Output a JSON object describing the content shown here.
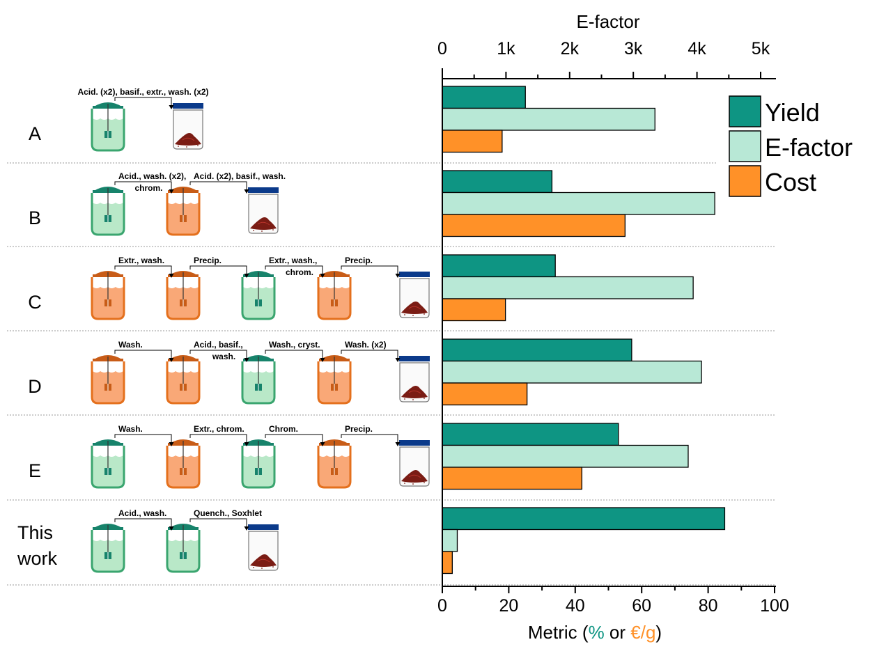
{
  "colors": {
    "yield": "#0e9583",
    "efactor": "#b8e8d6",
    "cost": "#ff9128",
    "green_vessel": "#3aa56f",
    "green_fill": "#b9e8c8",
    "orange_vessel": "#e4701d",
    "orange_fill": "#f9a877",
    "jar_lid": "#0b3a8a",
    "powder": "#7a1c14"
  },
  "chart_data": {
    "type": "bar",
    "orientation": "horizontal",
    "categories": [
      "A",
      "B",
      "C",
      "D",
      "E",
      "This work"
    ],
    "series": [
      {
        "name": "Yield",
        "values": [
          25,
          33,
          34,
          57,
          53,
          85
        ]
      },
      {
        "name": "E-factor",
        "values": [
          64,
          82,
          75.5,
          78,
          74,
          4.5
        ]
      },
      {
        "name": "Cost",
        "values": [
          18,
          55,
          19,
          25.5,
          42,
          3
        ]
      }
    ],
    "xlabel": {
      "prefix": "Metric (",
      "percent": "%",
      "or": " or ",
      "euro": "€/g",
      "suffix": ")"
    },
    "xlim": [
      0,
      100
    ],
    "xticks": [
      "0",
      "20",
      "40",
      "60",
      "80",
      "100"
    ],
    "top_axis": {
      "label": "E-factor",
      "ticks": [
        "0",
        "1k",
        "2k",
        "3k",
        "4k",
        "5k"
      ],
      "range": [
        0,
        5000
      ]
    },
    "legend_position": "top-right",
    "grid": false
  },
  "rows": [
    {
      "label": [
        "A"
      ],
      "vessels": [
        "green",
        "jar"
      ],
      "steps": [
        [
          "Acid. (x2), basif., extr., wash. (x2)"
        ]
      ]
    },
    {
      "label": [
        "B"
      ],
      "vessels": [
        "green",
        "orange",
        "jar"
      ],
      "steps": [
        [
          "Acid., wash. (x2),",
          "chrom."
        ],
        [
          "Acid. (x2), basif., wash."
        ]
      ]
    },
    {
      "label": [
        "C"
      ],
      "vessels": [
        "orange",
        "orange",
        "green",
        "orange",
        "jar"
      ],
      "steps": [
        [
          "Extr., wash."
        ],
        [
          "Precip."
        ],
        [
          "Extr., wash.,",
          "chrom."
        ],
        [
          "Precip."
        ]
      ]
    },
    {
      "label": [
        "D"
      ],
      "vessels": [
        "orange",
        "orange",
        "green",
        "orange",
        "jar"
      ],
      "steps": [
        [
          "Wash."
        ],
        [
          "Acid., basif.,",
          "wash."
        ],
        [
          "Wash., cryst."
        ],
        [
          "Wash. (x2)"
        ]
      ]
    },
    {
      "label": [
        "E"
      ],
      "vessels": [
        "green",
        "orange",
        "green",
        "orange",
        "jar"
      ],
      "steps": [
        [
          "Wash."
        ],
        [
          "Extr., chrom."
        ],
        [
          "Chrom."
        ],
        [
          "Precip."
        ]
      ]
    },
    {
      "label": [
        "This",
        "work"
      ],
      "vessels": [
        "green",
        "green",
        "jar"
      ],
      "steps": [
        [
          "Acid., wash."
        ],
        [
          "Quench., Soxhlet"
        ]
      ]
    }
  ]
}
